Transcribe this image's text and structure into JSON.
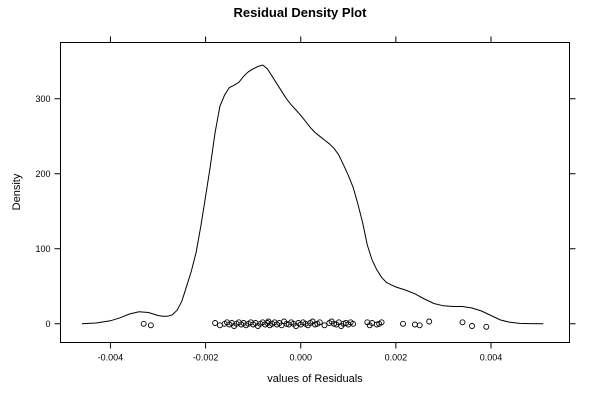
{
  "chart_data": {
    "type": "line",
    "title": "Residual Density Plot",
    "xlabel": "values of Residuals",
    "ylabel": "Density",
    "xlim": [
      -0.00505,
      0.00565
    ],
    "ylim": [
      -25,
      375
    ],
    "x_ticks": [
      -0.004,
      -0.002,
      0.0,
      0.002,
      0.004
    ],
    "x_tick_labels": [
      "-0.004",
      "-0.002",
      "0.000",
      "0.002",
      "0.004"
    ],
    "y_ticks": [
      0,
      100,
      200,
      300
    ],
    "y_tick_labels": [
      "0",
      "100",
      "200",
      "300"
    ],
    "grid": false,
    "series": [
      {
        "x": [
          -0.0046,
          -0.0043,
          -0.004,
          -0.0038,
          -0.0036,
          -0.0034,
          -0.0032,
          -0.0031,
          -0.003,
          -0.0029,
          -0.0028,
          -0.0027,
          -0.0026,
          -0.0025,
          -0.0024,
          -0.0023,
          -0.0022,
          -0.0021,
          -0.002,
          -0.0019,
          -0.0018,
          -0.0017,
          -0.0016,
          -0.0015,
          -0.0014,
          -0.0013,
          -0.0012,
          -0.0011,
          -0.001,
          -0.0009,
          -0.0008,
          -0.0007,
          -0.0006,
          -0.0005,
          -0.0004,
          -0.0003,
          -0.0002,
          -0.0001,
          0.0,
          0.0001,
          0.0002,
          0.0003,
          0.0004,
          0.0005,
          0.0006,
          0.0007,
          0.0008,
          0.0009,
          0.001,
          0.0011,
          0.0012,
          0.0013,
          0.0014,
          0.0015,
          0.0016,
          0.0017,
          0.0018,
          0.0019,
          0.002,
          0.0021,
          0.0022,
          0.0024,
          0.0026,
          0.0028,
          0.003,
          0.0032,
          0.0034,
          0.0036,
          0.0038,
          0.004,
          0.0042,
          0.0044,
          0.0046,
          0.0048,
          0.0051
        ],
        "y": [
          0,
          1,
          4,
          8,
          13,
          16,
          15,
          13,
          11,
          10,
          10,
          12,
          18,
          30,
          50,
          70,
          95,
          130,
          170,
          210,
          255,
          290,
          305,
          315,
          318,
          322,
          330,
          336,
          340,
          343,
          345,
          340,
          330,
          320,
          310,
          300,
          292,
          285,
          278,
          270,
          262,
          255,
          250,
          245,
          240,
          234,
          225,
          212,
          198,
          182,
          160,
          135,
          105,
          85,
          72,
          62,
          55,
          52,
          49,
          47,
          45,
          40,
          33,
          27,
          24,
          23,
          23,
          21,
          17,
          11,
          5,
          2,
          0.5,
          0.2,
          0
        ]
      }
    ],
    "rug_points": [
      {
        "x": -0.0033,
        "y": 0
      },
      {
        "x": -0.00315,
        "y": -2
      },
      {
        "x": -0.0018,
        "y": 1
      },
      {
        "x": -0.0017,
        "y": -2
      },
      {
        "x": -0.0016,
        "y": 0
      },
      {
        "x": -0.00155,
        "y": 2
      },
      {
        "x": -0.0015,
        "y": -1
      },
      {
        "x": -0.00145,
        "y": 1
      },
      {
        "x": -0.0014,
        "y": -3
      },
      {
        "x": -0.00135,
        "y": 0
      },
      {
        "x": -0.0013,
        "y": 2
      },
      {
        "x": -0.00125,
        "y": -1
      },
      {
        "x": -0.0012,
        "y": 1
      },
      {
        "x": -0.00115,
        "y": -2
      },
      {
        "x": -0.0011,
        "y": 0
      },
      {
        "x": -0.00105,
        "y": 2
      },
      {
        "x": -0.001,
        "y": -1
      },
      {
        "x": -0.00095,
        "y": 1
      },
      {
        "x": -0.0009,
        "y": -3
      },
      {
        "x": -0.00085,
        "y": 0
      },
      {
        "x": -0.0008,
        "y": 2
      },
      {
        "x": -0.00075,
        "y": -1
      },
      {
        "x": -0.0007,
        "y": 1
      },
      {
        "x": -0.00068,
        "y": 3
      },
      {
        "x": -0.00065,
        "y": -2
      },
      {
        "x": -0.0006,
        "y": 0
      },
      {
        "x": -0.00055,
        "y": 2
      },
      {
        "x": -0.0005,
        "y": -1
      },
      {
        "x": -0.00045,
        "y": 1
      },
      {
        "x": -0.0004,
        "y": -2
      },
      {
        "x": -0.00035,
        "y": 3
      },
      {
        "x": -0.0003,
        "y": 0
      },
      {
        "x": -0.00025,
        "y": -1
      },
      {
        "x": -0.0002,
        "y": 2
      },
      {
        "x": -0.00015,
        "y": 0
      },
      {
        "x": -0.0001,
        "y": -3
      },
      {
        "x": -5e-05,
        "y": 1
      },
      {
        "x": 0.0,
        "y": -1
      },
      {
        "x": 5e-05,
        "y": 2
      },
      {
        "x": 0.0001,
        "y": 0
      },
      {
        "x": 0.00015,
        "y": -2
      },
      {
        "x": 0.0002,
        "y": 1
      },
      {
        "x": 0.00025,
        "y": 3
      },
      {
        "x": 0.0003,
        "y": -1
      },
      {
        "x": 0.00035,
        "y": 0
      },
      {
        "x": 0.0004,
        "y": 2
      },
      {
        "x": 0.0005,
        "y": -2
      },
      {
        "x": 0.0006,
        "y": 1
      },
      {
        "x": 0.00065,
        "y": 3
      },
      {
        "x": 0.0007,
        "y": 0
      },
      {
        "x": 0.00075,
        "y": -1
      },
      {
        "x": 0.0008,
        "y": 2
      },
      {
        "x": 0.00085,
        "y": -3
      },
      {
        "x": 0.0009,
        "y": 0
      },
      {
        "x": 0.00095,
        "y": 1
      },
      {
        "x": 0.001,
        "y": -1
      },
      {
        "x": 0.00105,
        "y": 2
      },
      {
        "x": 0.0011,
        "y": 0
      },
      {
        "x": 0.0014,
        "y": 2
      },
      {
        "x": 0.00145,
        "y": -2
      },
      {
        "x": 0.0015,
        "y": 1
      },
      {
        "x": 0.0016,
        "y": -1
      },
      {
        "x": 0.00165,
        "y": 0
      },
      {
        "x": 0.0017,
        "y": 2
      },
      {
        "x": 0.00215,
        "y": 0
      },
      {
        "x": 0.0024,
        "y": -1
      },
      {
        "x": 0.0025,
        "y": -2
      },
      {
        "x": 0.0027,
        "y": 3
      },
      {
        "x": 0.0034,
        "y": 2
      },
      {
        "x": 0.0036,
        "y": -3
      },
      {
        "x": 0.0039,
        "y": -4
      }
    ]
  }
}
